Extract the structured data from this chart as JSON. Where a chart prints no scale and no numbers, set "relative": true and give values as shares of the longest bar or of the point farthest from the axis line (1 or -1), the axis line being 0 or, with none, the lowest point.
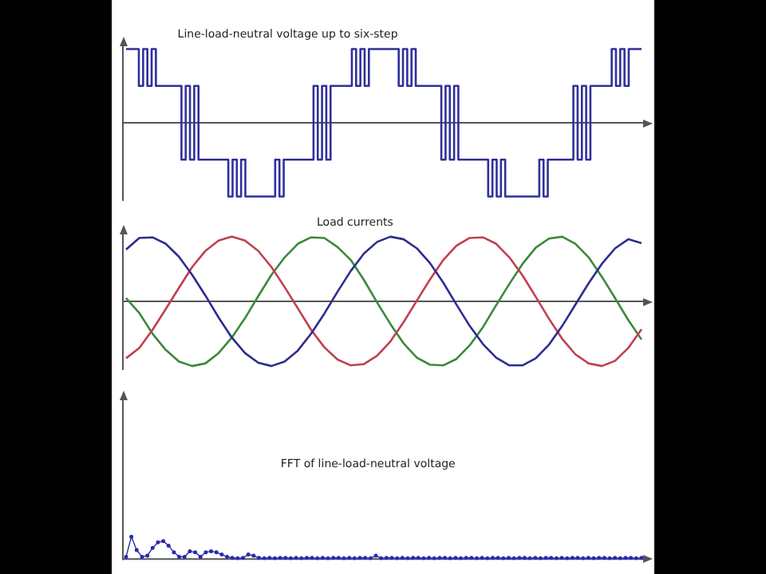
{
  "chart_data": [
    {
      "type": "step",
      "title": "Line-load-neutral voltage up to six-step",
      "relative": true,
      "color": "#30309a",
      "categories": [
        null,
        null,
        null,
        null,
        null,
        null,
        null,
        null,
        null,
        null,
        null,
        null,
        null,
        null,
        null,
        null,
        null,
        null,
        null,
        null,
        null,
        null,
        null,
        null,
        null,
        null,
        null,
        null,
        null,
        null,
        null,
        null,
        null,
        null,
        null,
        null,
        null,
        null,
        null,
        null,
        null,
        null,
        null,
        null,
        null,
        null,
        null,
        null,
        null,
        null,
        null,
        null,
        null,
        null,
        null,
        null,
        null,
        null,
        null,
        null,
        null,
        null,
        null,
        null,
        null,
        null,
        null,
        null,
        null,
        null,
        null,
        null,
        null,
        null,
        null,
        null,
        null,
        null,
        null,
        null,
        null,
        null,
        null,
        null,
        null,
        null,
        null,
        null,
        null,
        null,
        null,
        null,
        null,
        null,
        null,
        null,
        null,
        null,
        null,
        null,
        null,
        null,
        null,
        null,
        null,
        null,
        null,
        null,
        null,
        null,
        null,
        null,
        null,
        null,
        null,
        null,
        null,
        null,
        null,
        null,
        null,
        null
      ],
      "values": [
        1,
        1,
        1,
        0.5,
        1,
        0.5,
        1,
        0.5,
        0.5,
        0.5,
        0.5,
        0.5,
        0.5,
        -0.5,
        0.5,
        -0.5,
        0.5,
        -0.5,
        -0.5,
        -0.5,
        -0.5,
        -0.5,
        -0.5,
        -0.5,
        -1,
        -0.5,
        -1,
        -0.5,
        -1,
        -1,
        -1,
        -1,
        -1,
        -1,
        -1,
        -0.5,
        -1,
        -0.5,
        -0.5,
        -0.5,
        -0.5,
        -0.5,
        -0.5,
        -0.5,
        0.5,
        -0.5,
        0.5,
        -0.5,
        0.5,
        0.5,
        0.5,
        0.5,
        0.5,
        1,
        0.5,
        1,
        0.5,
        1,
        1,
        1,
        1,
        1,
        1,
        1,
        0.5,
        1,
        0.5,
        1,
        0.5,
        0.5,
        0.5,
        0.5,
        0.5,
        0.5,
        -0.5,
        0.5,
        -0.5,
        0.5,
        -0.5,
        -0.5,
        -0.5,
        -0.5,
        -0.5,
        -0.5,
        -0.5,
        -1,
        -0.5,
        -1,
        -0.5,
        -1,
        -1,
        -1,
        -1,
        -1,
        -1,
        -1,
        -1,
        -0.5,
        -1,
        -0.5,
        -0.5,
        -0.5,
        -0.5,
        -0.5,
        -0.5,
        0.5,
        -0.5,
        0.5,
        -0.5,
        0.5,
        0.5,
        0.5,
        0.5,
        0.5,
        1,
        0.5,
        1,
        0.5,
        1,
        1,
        1,
        1
      ]
    },
    {
      "type": "line",
      "title": "Load currents",
      "relative": true,
      "categories": [
        null,
        null,
        null,
        null,
        null,
        null,
        null,
        null,
        null,
        null,
        null,
        null,
        null,
        null,
        null,
        null,
        null,
        null,
        null,
        null,
        null,
        null,
        null,
        null,
        null,
        null,
        null,
        null,
        null,
        null,
        null,
        null,
        null,
        null,
        null,
        null,
        null,
        null,
        null,
        null
      ],
      "series": [
        {
          "color": "#2d2d8f",
          "values": [
            0.8,
            0.98,
            0.99,
            0.89,
            0.69,
            0.41,
            0.09,
            -0.25,
            -0.56,
            -0.8,
            -0.95,
            -1,
            -0.93,
            -0.76,
            -0.5,
            -0.19,
            0.15,
            0.47,
            0.74,
            0.92,
            1,
            0.96,
            0.82,
            0.59,
            0.29,
            -0.05,
            -0.38,
            -0.66,
            -0.87,
            -0.99,
            -0.99,
            -0.88,
            -0.67,
            -0.38,
            -0.05,
            0.28,
            0.58,
            0.82,
            0.96,
            0.9
          ]
        },
        {
          "color": "#c04050",
          "values": [
            -0.88,
            -0.72,
            -0.44,
            -0.12,
            0.21,
            0.53,
            0.78,
            0.94,
            1,
            0.94,
            0.78,
            0.53,
            0.22,
            -0.11,
            -0.44,
            -0.71,
            -0.9,
            -0.99,
            -0.97,
            -0.84,
            -0.62,
            -0.32,
            0.01,
            0.34,
            0.64,
            0.86,
            0.98,
            0.99,
            0.89,
            0.68,
            0.4,
            0.07,
            -0.27,
            -0.58,
            -0.82,
            -0.96,
            -1,
            -0.92,
            -0.72,
            -0.43
          ]
        },
        {
          "color": "#3a8a3a",
          "values": [
            0.05,
            -0.18,
            -0.5,
            -0.75,
            -0.93,
            -1,
            -0.96,
            -0.8,
            -0.56,
            -0.26,
            0.08,
            0.41,
            0.68,
            0.89,
            0.99,
            0.98,
            0.84,
            0.64,
            0.33,
            -0.02,
            -0.35,
            -0.65,
            -0.87,
            -0.98,
            -0.99,
            -0.89,
            -0.68,
            -0.4,
            -0.06,
            0.27,
            0.58,
            0.83,
            0.97,
            1,
            0.89,
            0.68,
            0.38,
            0.05,
            -0.29,
            -0.59
          ]
        }
      ]
    },
    {
      "type": "line",
      "title": "FFT of line-load-neutral voltage",
      "relative": true,
      "color": "#2a2ab0",
      "marker": "circle",
      "categories": [
        null,
        null,
        null,
        null,
        null,
        null,
        null,
        null,
        null,
        null,
        null,
        null,
        null,
        null,
        null,
        null,
        null,
        null,
        null,
        null,
        null,
        null,
        null,
        null,
        null,
        null,
        null,
        null,
        null,
        null,
        null,
        null,
        null,
        null,
        null,
        null,
        null,
        null,
        null,
        null,
        null,
        null,
        null,
        null,
        null,
        null,
        null,
        null,
        null,
        null,
        null,
        null,
        null,
        null,
        null,
        null,
        null,
        null,
        null,
        null,
        null,
        null,
        null,
        null,
        null,
        null,
        null,
        null,
        null,
        null,
        null,
        null,
        null,
        null,
        null,
        null,
        null,
        null,
        null,
        null,
        null,
        null,
        null,
        null,
        null,
        null,
        null,
        null,
        null,
        null,
        null,
        null,
        null,
        null,
        null,
        null,
        null,
        null
      ],
      "values": [
        0.1,
        1,
        0.4,
        0.1,
        0.15,
        0.5,
        0.75,
        0.8,
        0.6,
        0.3,
        0.1,
        0.1,
        0.35,
        0.3,
        0.1,
        0.3,
        0.35,
        0.3,
        0.2,
        0.1,
        0.05,
        0.03,
        0.05,
        0.2,
        0.15,
        0.05,
        0.03,
        0.05,
        0.03,
        0.05,
        0.05,
        0.03,
        0.05,
        0.03,
        0.05,
        0.05,
        0.03,
        0.05,
        0.03,
        0.05,
        0.05,
        0.03,
        0.05,
        0.03,
        0.05,
        0.05,
        0.03,
        0.15,
        0.03,
        0.05,
        0.05,
        0.03,
        0.05,
        0.03,
        0.05,
        0.05,
        0.03,
        0.05,
        0.03,
        0.05,
        0.05,
        0.03,
        0.05,
        0.03,
        0.05,
        0.05,
        0.03,
        0.05,
        0.03,
        0.05,
        0.05,
        0.03,
        0.05,
        0.03,
        0.05,
        0.05,
        0.03,
        0.05,
        0.03,
        0.05,
        0.05,
        0.03,
        0.05,
        0.03,
        0.05,
        0.05,
        0.03,
        0.05,
        0.03,
        0.05,
        0.05,
        0.03,
        0.05,
        0.03,
        0.05,
        0.05,
        0.03,
        0.05
      ]
    }
  ]
}
